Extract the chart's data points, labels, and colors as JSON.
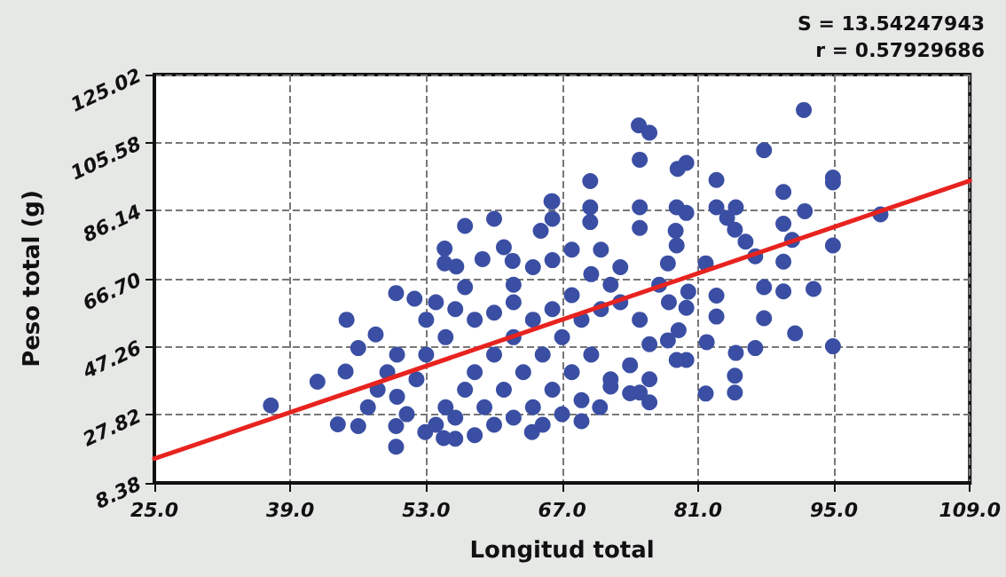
{
  "chart_data": {
    "type": "scatter",
    "xlabel": "Longitud total",
    "ylabel": "Peso total (g)",
    "annotations": [
      "S = 13.54247943",
      "r = 0.57929686"
    ],
    "xlim": [
      25,
      109
    ],
    "xticks": [
      {
        "value": 25,
        "label": "25.0"
      },
      {
        "value": 39,
        "label": "39.0"
      },
      {
        "value": 53,
        "label": "53.0"
      },
      {
        "value": 67,
        "label": "67.0"
      },
      {
        "value": 81,
        "label": "81.0"
      },
      {
        "value": 95,
        "label": "95.0"
      },
      {
        "value": 109,
        "label": "109.0"
      }
    ],
    "ylim": [
      8.38,
      125.02
    ],
    "yticks": [
      8.38,
      27.82,
      47.26,
      {
        "value": 66.7,
        "label": "66.70"
      },
      86.14,
      105.58,
      125.02
    ],
    "grid": true,
    "marker": "circle",
    "series": [
      {
        "color": "#3a4fa3",
        "x": [
          37.0,
          41.8,
          43.9,
          44.8,
          46.0,
          46.0,
          44.7,
          47.8,
          49.9,
          51.8,
          49.9,
          49.9,
          54.9,
          54.9,
          56.1,
          57.0,
          60.0,
          58.8,
          61.0,
          61.9,
          65.9,
          64.8,
          63.9,
          57.0,
          54.8,
          52.9,
          91.9,
          74.9,
          76.0,
          75.0,
          87.8,
          78.9,
          79.8,
          69.9,
          82.9,
          89.8,
          94.9,
          94.9,
          99.8,
          92.0,
          89.8,
          90.7,
          94.9,
          89.8,
          86.9,
          85.9,
          84.8,
          84.0,
          84.9,
          82.9,
          87.8,
          89.8,
          92.9,
          94.9,
          91.0,
          87.8,
          86.9,
          84.9,
          84.8,
          84.8,
          81.8,
          82.9,
          81.8,
          78.8,
          79.8,
          78.7,
          78.8,
          77.9,
          75.0,
          75.0,
          69.9,
          69.9,
          66.0,
          66.0,
          76.0,
          75.0,
          70.9,
          69.0,
          72.0,
          78.8,
          79.8,
          79.8,
          77.9,
          81.9,
          82.9,
          55,
          57,
          58,
          60,
          62,
          55,
          53,
          52,
          50,
          51,
          54,
          56,
          59,
          61,
          63,
          65,
          67,
          69,
          71,
          73,
          70,
          68,
          66,
          64,
          62,
          60,
          58,
          56,
          65,
          67,
          69,
          72,
          74,
          76,
          75,
          72,
          70,
          68,
          66,
          64,
          62,
          60,
          58,
          56,
          54,
          53,
          50,
          49,
          48,
          47,
          62,
          64,
          66,
          68,
          71,
          73,
          77,
          78,
          80,
          79,
          76,
          74
        ],
        "values": [
          30.5,
          37.3,
          25.1,
          55.0,
          46.9,
          24.6,
          40.2,
          50.8,
          62.6,
          61.0,
          18.7,
          24.6,
          75.3,
          71.1,
          70.2,
          81.8,
          83.8,
          72.3,
          75.7,
          71.8,
          88.8,
          80.4,
          22.9,
          64.3,
          21.2,
          22.9,
          114.9,
          110.5,
          108.4,
          100.7,
          103.4,
          98.1,
          99.8,
          94.6,
          94.9,
          91.5,
          95.6,
          94.2,
          85.1,
          86.0,
          82.4,
          77.8,
          76.2,
          71.6,
          73.1,
          77.3,
          80.7,
          84.1,
          87.1,
          87.1,
          64.3,
          63.1,
          63.8,
          47.4,
          51.1,
          55.4,
          46.9,
          45.5,
          39.0,
          34.2,
          33.9,
          61.9,
          71.1,
          87.1,
          85.5,
          80.4,
          76.2,
          71.1,
          87.1,
          81.2,
          87.1,
          82.9,
          88.8,
          83.8,
          31.4,
          34.2,
          30.0,
          26.0,
          35.9,
          43.5,
          43.5,
          58.4,
          49.1,
          48.6,
          55.9,
          30,
          35,
          40,
          45,
          50,
          50,
          45,
          38,
          33,
          28,
          25,
          27,
          30,
          35,
          40,
          45,
          50,
          55,
          58,
          60,
          45,
          40,
          35,
          30,
          27,
          25,
          22,
          21,
          25,
          28,
          32,
          38,
          42,
          48,
          55,
          65,
          68,
          62,
          58,
          55,
          60,
          57,
          55,
          58,
          60,
          55,
          45,
          40,
          35,
          30,
          65,
          70,
          72,
          75,
          75,
          70,
          65,
          60,
          63,
          52,
          38,
          34
        ]
      },
      {
        "type": "line",
        "color": "#e8231f",
        "marker": "none",
        "line_style": "solid",
        "x": [
          25,
          109
        ],
        "values": [
          15.3,
          94.7
        ]
      }
    ]
  }
}
